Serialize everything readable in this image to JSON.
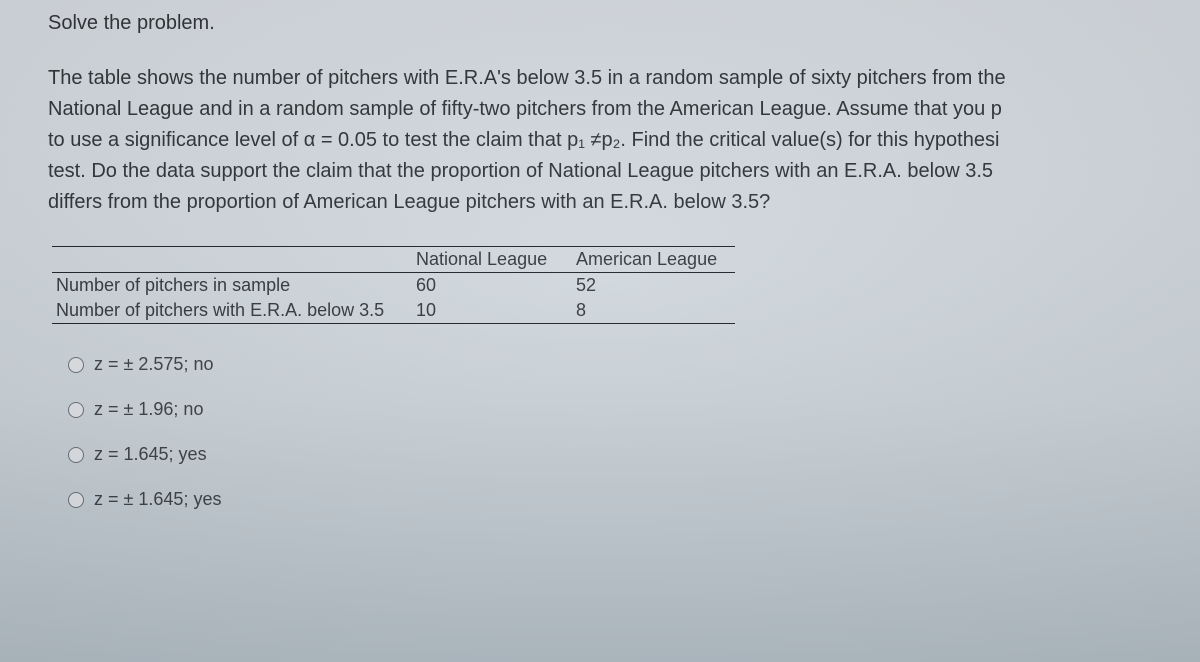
{
  "instruction": "Solve the problem.",
  "prompt_lines": [
    "The table shows the number of pitchers with E.R.A's below 3.5 in a random sample of sixty pitchers from the",
    "National League and in a random sample of fifty-two pitchers from the American League. Assume that you p",
    "to use a significance level of α = 0.05 to test the claim that p₁ ≠p₂. Find the critical value(s) for this hypothesi",
    "test. Do the data support the claim that the proportion of National League pitchers with an E.R.A. below 3.5",
    "differs from the proportion of American League pitchers with an E.R.A. below 3.5?"
  ],
  "table": {
    "columns": [
      "",
      "National League",
      "American League"
    ],
    "rows": [
      [
        "Number of pitchers in sample",
        "60",
        "52"
      ],
      [
        "Number of pitchers with E.R.A. below 3.5",
        "10",
        "8"
      ]
    ],
    "border_color": "#1e2226",
    "font_size": 18
  },
  "options": [
    {
      "label": "z = ± 2.575; no"
    },
    {
      "label": "z = ± 1.96; no"
    },
    {
      "label": "z = 1.645; yes"
    },
    {
      "label": "z = ± 1.645; yes"
    }
  ],
  "colors": {
    "background_top": "#d8dde3",
    "background_bottom": "#b8c3cb",
    "text": "#2c2f33",
    "radio_border": "#6a7078"
  },
  "typography": {
    "body_fontsize": 20,
    "option_fontsize": 18,
    "font_family": "Arial"
  }
}
